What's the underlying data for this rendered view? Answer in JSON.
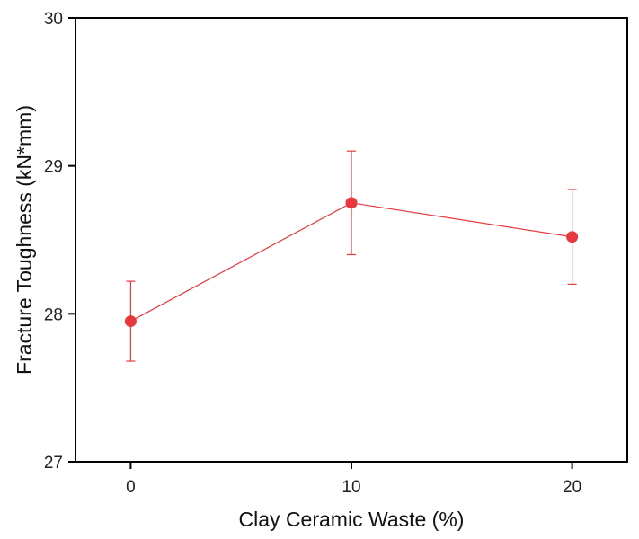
{
  "chart_data": {
    "type": "line",
    "title": "",
    "xlabel": "Clay Ceramic Waste (%)",
    "ylabel": "Fracture Toughness (kN*mm)",
    "x": [
      0,
      10,
      20
    ],
    "x_ticks": [
      "0",
      "10",
      "20"
    ],
    "y_ticks": [
      "27",
      "28",
      "29",
      "30"
    ],
    "xlim": [
      -2.5,
      22.5
    ],
    "ylim": [
      27,
      30
    ],
    "series": [
      {
        "name": "",
        "color": "#e8383d",
        "values": [
          27.95,
          28.75,
          28.52
        ],
        "error": [
          0.27,
          0.35,
          0.32
        ]
      }
    ],
    "grid": false,
    "legend": "none"
  }
}
